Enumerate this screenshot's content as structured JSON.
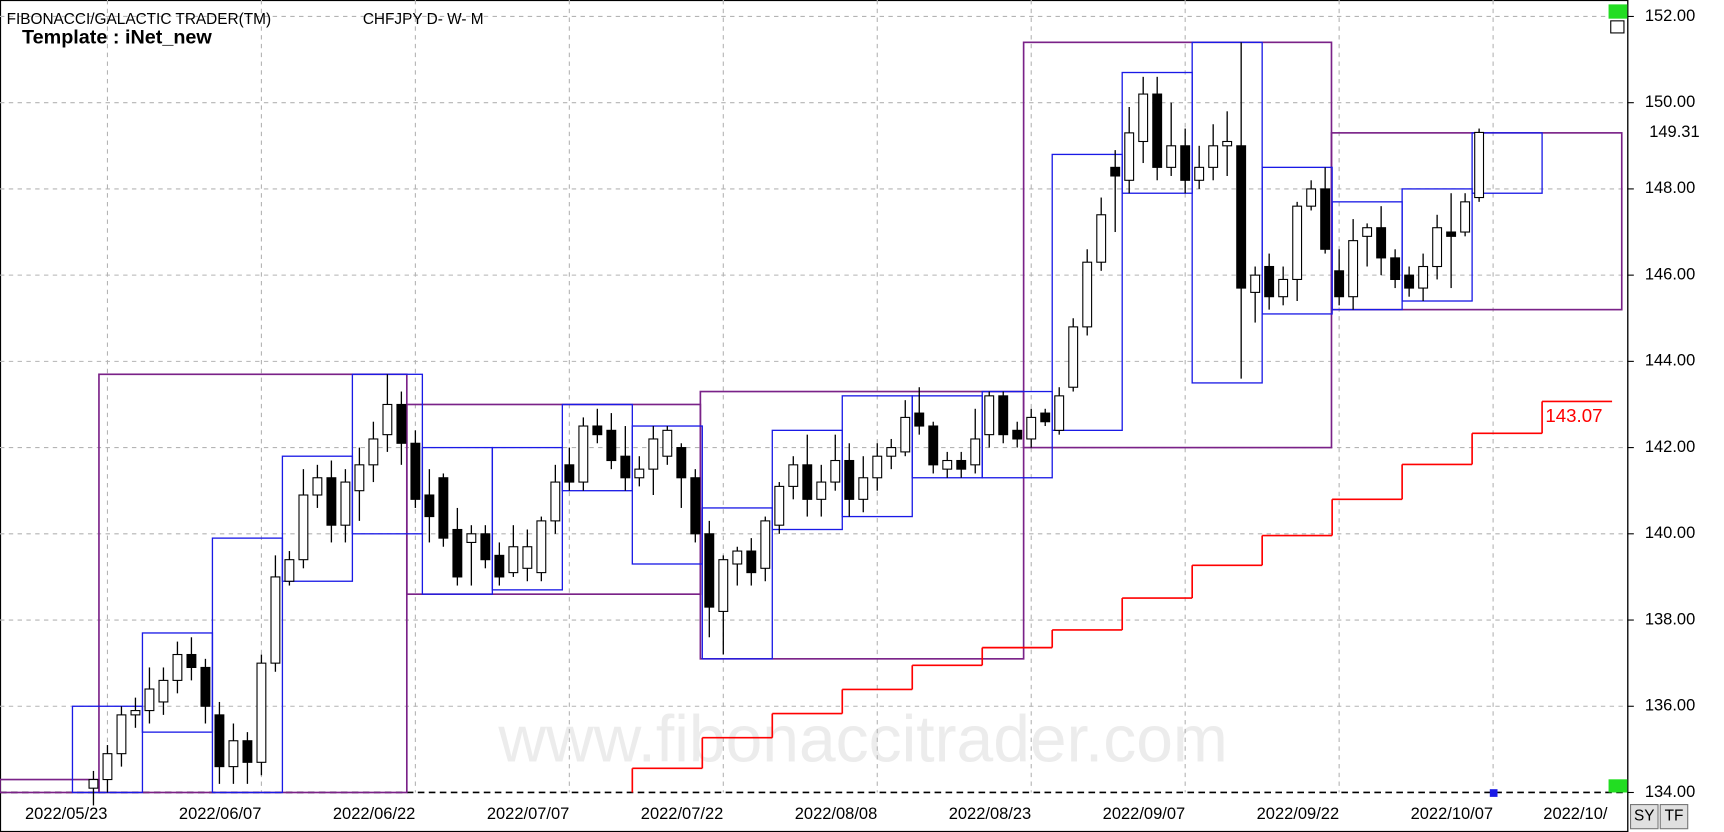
{
  "header": {
    "app": "FIBONACCI/GALACTIC TRADER(TM)",
    "symbol": "CHFJPY D- W- M",
    "template": "Template : iNet_new"
  },
  "watermark": "www.fibonaccitrader.com",
  "buttons": [
    "SY",
    "TF"
  ],
  "chart_data": {
    "type": "candlestick",
    "categories": [
      null,
      "2022/05/23",
      null,
      null,
      null,
      null,
      null,
      null,
      null,
      null,
      null,
      null,
      "2022/06/07",
      null,
      null,
      null,
      null,
      null,
      null,
      null,
      null,
      null,
      null,
      "2022/06/22",
      null,
      null,
      null,
      null,
      null,
      null,
      null,
      null,
      null,
      null,
      "2022/07/07",
      null,
      null,
      null,
      null,
      null,
      null,
      null,
      null,
      null,
      null,
      "2022/07/22",
      null,
      null,
      null,
      null,
      null,
      null,
      null,
      null,
      null,
      null,
      "2022/08/08",
      null,
      null,
      null,
      null,
      null,
      null,
      null,
      null,
      null,
      null,
      "2022/08/23",
      null,
      null,
      null,
      null,
      null,
      null,
      null,
      null,
      null,
      null,
      "2022/09/07",
      null,
      null,
      null,
      null,
      null,
      null,
      null,
      null,
      null,
      null,
      "2022/09/22",
      null,
      null,
      null,
      null,
      null,
      null,
      null,
      null,
      null,
      null,
      "2022/10/07",
      null,
      null,
      null,
      null,
      null,
      null,
      null,
      null,
      null,
      null,
      "2022/10/"
    ],
    "open": [
      134.1,
      134.3,
      134.9,
      135.8,
      135.9,
      136.1,
      136.6,
      137.2,
      136.9,
      135.8,
      134.6,
      135.2,
      134.7,
      137.0,
      138.9,
      139.4,
      140.9,
      141.3,
      140.2,
      141.0,
      141.6,
      142.3,
      143.0,
      142.1,
      140.9,
      141.3,
      140.1,
      139.8,
      140.0,
      139.5,
      139.1,
      139.2,
      139.1,
      140.3,
      141.6,
      141.2,
      142.5,
      142.4,
      141.8,
      141.3,
      141.5,
      141.8,
      142.0,
      141.3,
      140.0,
      138.2,
      139.3,
      139.6,
      139.2,
      140.2,
      141.1,
      141.6,
      140.8,
      141.2,
      141.7,
      140.8,
      141.3,
      141.8,
      141.9,
      142.8,
      142.5,
      141.5,
      141.7,
      141.6,
      142.3,
      143.2,
      142.4,
      142.2,
      142.8,
      142.4,
      143.4,
      144.8,
      146.3,
      148.5,
      148.2,
      149.1,
      150.2,
      148.5,
      149.0,
      148.2,
      148.5,
      149.0,
      149.0,
      145.6,
      146.2,
      145.5,
      145.9,
      147.6,
      148.0,
      146.1,
      145.5,
      146.9,
      147.1,
      146.4,
      146.0,
      145.7,
      146.2,
      147.0,
      147.0,
      147.8,
      null,
      null,
      null,
      null,
      null,
      null,
      null,
      null,
      null,
      null,
      null,
      null
    ],
    "high": [
      134.5,
      135.1,
      136.0,
      136.2,
      136.9,
      136.9,
      137.5,
      137.6,
      137.1,
      136.1,
      135.6,
      135.4,
      137.2,
      139.5,
      139.6,
      141.5,
      141.6,
      141.7,
      141.5,
      142.0,
      142.6,
      143.7,
      143.3,
      142.4,
      141.5,
      141.4,
      140.6,
      140.2,
      140.2,
      139.8,
      140.2,
      140.1,
      140.4,
      141.6,
      142.0,
      142.7,
      142.9,
      142.8,
      142.5,
      141.8,
      142.5,
      142.5,
      142.1,
      141.5,
      140.3,
      139.5,
      139.7,
      139.9,
      140.4,
      141.2,
      141.8,
      142.3,
      141.6,
      142.3,
      142.1,
      141.8,
      142.1,
      142.2,
      143.1,
      143.4,
      142.6,
      141.9,
      141.9,
      142.9,
      143.3,
      143.3,
      142.6,
      142.9,
      142.9,
      143.4,
      145.0,
      146.6,
      147.8,
      148.9,
      149.9,
      150.6,
      150.6,
      150.0,
      149.4,
      149.0,
      149.5,
      149.8,
      151.4,
      146.2,
      146.5,
      146.2,
      147.7,
      148.2,
      148.5,
      146.6,
      147.3,
      147.2,
      147.6,
      146.6,
      146.2,
      146.5,
      147.4,
      147.9,
      147.9,
      149.4,
      null,
      null,
      null,
      null,
      null,
      null,
      null,
      null,
      null,
      null,
      null,
      null
    ],
    "low": [
      133.7,
      134.0,
      134.6,
      135.5,
      135.6,
      135.8,
      136.3,
      136.6,
      135.6,
      134.2,
      134.2,
      134.2,
      134.4,
      136.8,
      138.8,
      139.2,
      140.6,
      139.8,
      139.8,
      140.3,
      141.2,
      141.9,
      141.6,
      140.6,
      139.8,
      139.7,
      138.8,
      138.8,
      139.2,
      138.8,
      139.0,
      138.9,
      138.9,
      140.0,
      141.0,
      141.0,
      142.1,
      141.5,
      141.0,
      141.1,
      140.9,
      141.6,
      140.6,
      139.8,
      137.6,
      137.2,
      138.8,
      138.8,
      138.9,
      140.0,
      140.8,
      140.4,
      140.4,
      141.0,
      140.4,
      140.5,
      141.0,
      141.5,
      141.8,
      142.3,
      141.4,
      141.3,
      141.3,
      141.4,
      142.0,
      142.1,
      142.0,
      142.0,
      142.5,
      142.3,
      143.3,
      144.6,
      146.1,
      147.0,
      147.9,
      148.6,
      148.2,
      148.3,
      147.9,
      148.0,
      148.2,
      148.3,
      143.6,
      144.9,
      145.2,
      145.3,
      145.4,
      147.5,
      146.5,
      145.3,
      145.2,
      146.2,
      146.0,
      145.7,
      145.5,
      145.4,
      145.9,
      145.7,
      146.9,
      147.7,
      null,
      null,
      null,
      null,
      null,
      null,
      null,
      null,
      null,
      null,
      null,
      null
    ],
    "close": [
      134.3,
      134.9,
      135.8,
      135.9,
      136.4,
      136.6,
      137.2,
      136.9,
      136.0,
      134.6,
      135.2,
      134.7,
      137.0,
      139.0,
      139.4,
      140.9,
      141.3,
      140.2,
      141.2,
      141.6,
      142.2,
      143.0,
      142.1,
      140.8,
      140.4,
      139.9,
      139.0,
      140.0,
      139.4,
      139.0,
      139.7,
      139.7,
      140.3,
      141.2,
      141.2,
      142.5,
      142.3,
      141.7,
      141.3,
      141.5,
      142.2,
      142.4,
      141.3,
      140.0,
      138.3,
      139.4,
      139.6,
      139.1,
      140.3,
      141.1,
      141.6,
      140.8,
      141.2,
      141.7,
      140.8,
      141.3,
      141.8,
      142.0,
      142.7,
      142.5,
      141.6,
      141.7,
      141.5,
      142.2,
      143.2,
      142.3,
      142.2,
      142.7,
      142.6,
      143.2,
      144.8,
      146.3,
      147.4,
      148.3,
      149.3,
      150.2,
      148.5,
      149.0,
      148.2,
      148.5,
      149.0,
      149.1,
      145.7,
      146.0,
      145.5,
      145.9,
      147.6,
      148.0,
      146.6,
      145.5,
      146.8,
      147.1,
      146.4,
      145.9,
      145.7,
      146.2,
      147.1,
      146.9,
      147.7,
      149.31,
      null,
      null,
      null,
      null,
      null,
      null,
      null,
      null,
      null,
      null,
      null,
      null
    ],
    "up_color": "#ffffff",
    "down_color": "#000000",
    "ylim": [
      134,
      152
    ],
    "yticks": [
      {
        "value": 134,
        "label": "134.00"
      },
      {
        "value": 136,
        "label": "136.00"
      },
      {
        "value": 138,
        "label": "138.00"
      },
      {
        "value": 140,
        "label": "140.00"
      },
      {
        "value": 142,
        "label": "142.00"
      },
      {
        "value": 144,
        "label": "144.00"
      },
      {
        "value": 146,
        "label": "146.00"
      },
      {
        "value": 148,
        "label": "148.00"
      },
      {
        "value": 150,
        "label": "150.00"
      },
      {
        "value": 152,
        "label": "152.00"
      }
    ],
    "grid": true,
    "weekly_boxes": {
      "color": "#1a1ae6",
      "high": [
        136.0,
        137.7,
        139.9,
        141.8,
        143.7,
        142.0,
        142.0,
        143.0,
        142.5,
        140.6,
        142.4,
        143.2,
        143.2,
        143.3,
        148.8,
        150.7,
        151.4,
        148.5,
        147.7,
        148.0,
        149.3
      ],
      "low": [
        134.0,
        135.4,
        134.0,
        138.9,
        140.0,
        138.6,
        138.7,
        141.0,
        139.3,
        137.1,
        140.1,
        140.4,
        141.3,
        141.3,
        142.4,
        147.9,
        143.5,
        145.1,
        145.2,
        145.4,
        147.9
      ]
    },
    "monthly_boxes": {
      "color": "#7a2288",
      "high": [
        134.3,
        143.7,
        143.0,
        143.3,
        151.4,
        149.3
      ],
      "low": [
        134.0,
        134.0,
        138.6,
        137.1,
        142.0,
        145.2
      ]
    },
    "step_line": {
      "color": "#ff0000",
      "values": [
        134.56,
        135.27,
        135.83,
        136.39,
        136.95,
        137.36,
        137.77,
        138.51,
        139.27,
        139.96,
        140.8,
        141.61,
        142.33,
        143.07
      ]
    }
  }
}
